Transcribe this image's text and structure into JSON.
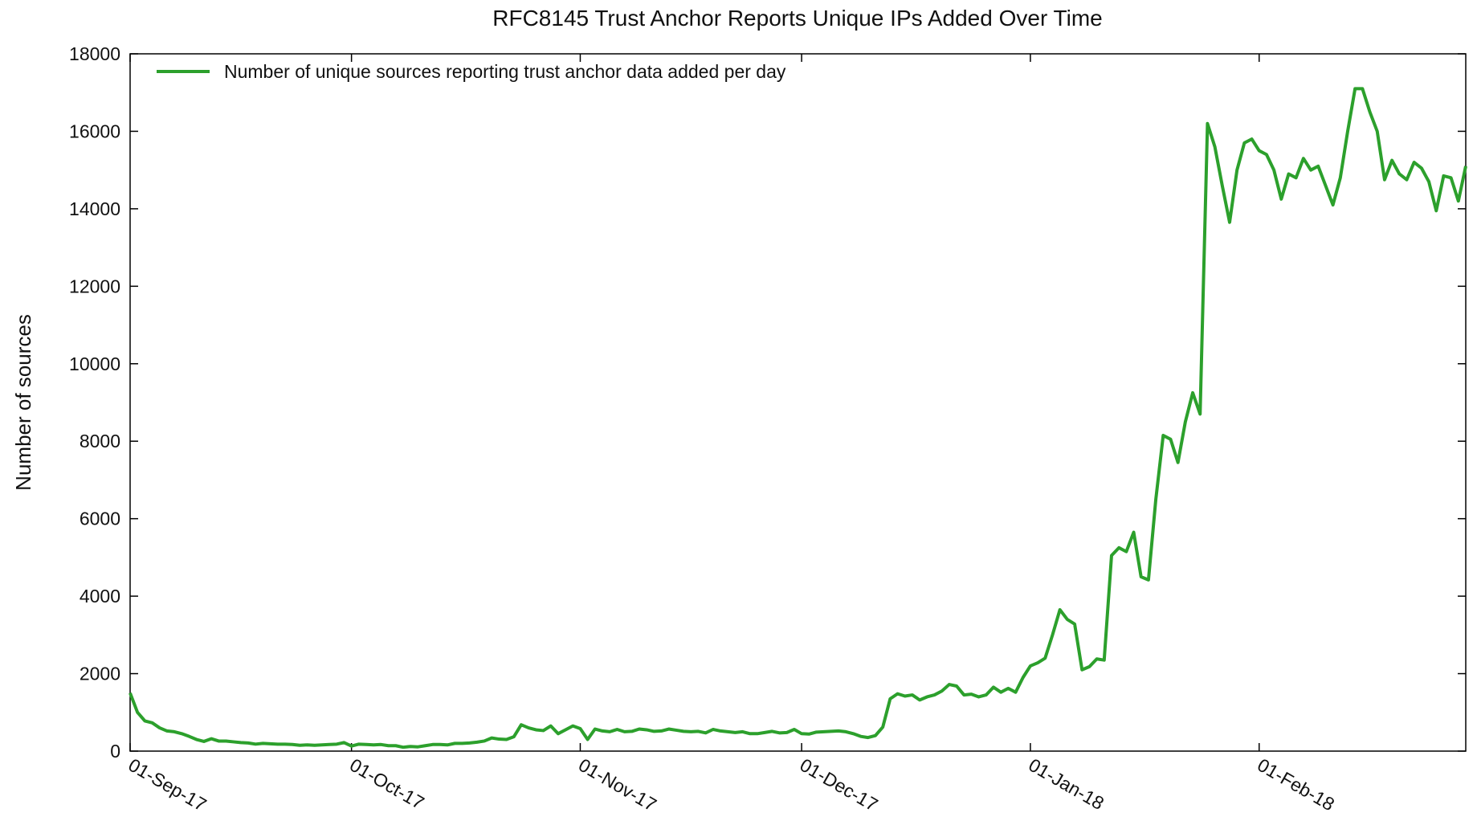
{
  "chart_data": {
    "type": "line",
    "title": "RFC8145 Trust Anchor Reports Unique IPs Added Over Time",
    "y_label": "Number of sources",
    "legend": "top-left",
    "xlim": [
      "2017-09-01",
      "2018-03-01"
    ],
    "xticks": [
      {
        "value": "2017-09-01",
        "label": "01-Sep-17"
      },
      {
        "value": "2017-10-01",
        "label": "01-Oct-17"
      },
      {
        "value": "2017-11-01",
        "label": "01-Nov-17"
      },
      {
        "value": "2017-12-01",
        "label": "01-Dec-17"
      },
      {
        "value": "2018-01-01",
        "label": "01-Jan-18"
      },
      {
        "value": "2018-02-01",
        "label": "01-Feb-18"
      }
    ],
    "ylim": [
      0,
      18000
    ],
    "yticks": [
      0,
      2000,
      4000,
      6000,
      8000,
      10000,
      12000,
      14000,
      16000,
      18000
    ],
    "x": [
      "2017-09-01",
      "2017-09-02",
      "2017-09-03",
      "2017-09-04",
      "2017-09-05",
      "2017-09-06",
      "2017-09-07",
      "2017-09-08",
      "2017-09-09",
      "2017-09-10",
      "2017-09-11",
      "2017-09-12",
      "2017-09-13",
      "2017-09-14",
      "2017-09-15",
      "2017-09-16",
      "2017-09-17",
      "2017-09-18",
      "2017-09-19",
      "2017-09-20",
      "2017-09-21",
      "2017-09-22",
      "2017-09-23",
      "2017-09-24",
      "2017-09-25",
      "2017-09-26",
      "2017-09-27",
      "2017-09-28",
      "2017-09-29",
      "2017-09-30",
      "2017-10-01",
      "2017-10-02",
      "2017-10-03",
      "2017-10-04",
      "2017-10-05",
      "2017-10-06",
      "2017-10-07",
      "2017-10-08",
      "2017-10-09",
      "2017-10-10",
      "2017-10-11",
      "2017-10-12",
      "2017-10-13",
      "2017-10-14",
      "2017-10-15",
      "2017-10-16",
      "2017-10-17",
      "2017-10-18",
      "2017-10-19",
      "2017-10-20",
      "2017-10-21",
      "2017-10-22",
      "2017-10-23",
      "2017-10-24",
      "2017-10-25",
      "2017-10-26",
      "2017-10-27",
      "2017-10-28",
      "2017-10-29",
      "2017-10-30",
      "2017-10-31",
      "2017-11-01",
      "2017-11-02",
      "2017-11-03",
      "2017-11-04",
      "2017-11-05",
      "2017-11-06",
      "2017-11-07",
      "2017-11-08",
      "2017-11-09",
      "2017-11-10",
      "2017-11-11",
      "2017-11-12",
      "2017-11-13",
      "2017-11-14",
      "2017-11-15",
      "2017-11-16",
      "2017-11-17",
      "2017-11-18",
      "2017-11-19",
      "2017-11-20",
      "2017-11-21",
      "2017-11-22",
      "2017-11-23",
      "2017-11-24",
      "2017-11-25",
      "2017-11-26",
      "2017-11-27",
      "2017-11-28",
      "2017-11-29",
      "2017-11-30",
      "2017-12-01",
      "2017-12-02",
      "2017-12-03",
      "2017-12-04",
      "2017-12-05",
      "2017-12-06",
      "2017-12-07",
      "2017-12-08",
      "2017-12-09",
      "2017-12-10",
      "2017-12-11",
      "2017-12-12",
      "2017-12-13",
      "2017-12-14",
      "2017-12-15",
      "2017-12-16",
      "2017-12-17",
      "2017-12-18",
      "2017-12-19",
      "2017-12-20",
      "2017-12-21",
      "2017-12-22",
      "2017-12-23",
      "2017-12-24",
      "2017-12-25",
      "2017-12-26",
      "2017-12-27",
      "2017-12-28",
      "2017-12-29",
      "2017-12-30",
      "2017-12-31",
      "2018-01-01",
      "2018-01-02",
      "2018-01-03",
      "2018-01-04",
      "2018-01-05",
      "2018-01-06",
      "2018-01-07",
      "2018-01-08",
      "2018-01-09",
      "2018-01-10",
      "2018-01-11",
      "2018-01-12",
      "2018-01-13",
      "2018-01-14",
      "2018-01-15",
      "2018-01-16",
      "2018-01-17",
      "2018-01-18",
      "2018-01-19",
      "2018-01-20",
      "2018-01-21",
      "2018-01-22",
      "2018-01-23",
      "2018-01-24",
      "2018-01-25",
      "2018-01-26",
      "2018-01-27",
      "2018-01-28",
      "2018-01-29",
      "2018-01-30",
      "2018-01-31",
      "2018-02-01",
      "2018-02-02",
      "2018-02-03",
      "2018-02-04",
      "2018-02-05",
      "2018-02-06",
      "2018-02-07",
      "2018-02-08",
      "2018-02-09",
      "2018-02-10",
      "2018-02-11",
      "2018-02-12",
      "2018-02-13",
      "2018-02-14",
      "2018-02-15",
      "2018-02-16",
      "2018-02-17",
      "2018-02-18",
      "2018-02-19",
      "2018-02-20",
      "2018-02-21",
      "2018-02-22",
      "2018-02-23",
      "2018-02-24",
      "2018-02-25",
      "2018-02-26",
      "2018-02-27",
      "2018-02-28",
      "2018-03-01"
    ],
    "series": [
      {
        "name": "Number of unique sources reporting trust anchor data added per day",
        "color": "#2ca02c",
        "values": [
          1500,
          1000,
          780,
          730,
          600,
          520,
          500,
          450,
          380,
          300,
          250,
          320,
          260,
          260,
          240,
          220,
          210,
          180,
          200,
          190,
          180,
          180,
          170,
          150,
          160,
          150,
          160,
          170,
          180,
          220,
          130,
          180,
          170,
          160,
          170,
          140,
          140,
          100,
          120,
          110,
          140,
          170,
          170,
          160,
          200,
          200,
          210,
          230,
          260,
          340,
          310,
          300,
          370,
          680,
          600,
          550,
          530,
          650,
          450,
          550,
          650,
          580,
          300,
          570,
          520,
          500,
          560,
          500,
          510,
          570,
          550,
          510,
          520,
          570,
          540,
          510,
          500,
          510,
          470,
          560,
          520,
          500,
          480,
          500,
          450,
          450,
          480,
          510,
          470,
          480,
          560,
          450,
          440,
          490,
          500,
          510,
          520,
          500,
          450,
          380,
          350,
          400,
          620,
          1350,
          1480,
          1420,
          1450,
          1320,
          1400,
          1450,
          1550,
          1720,
          1680,
          1450,
          1470,
          1400,
          1450,
          1650,
          1520,
          1620,
          1520,
          1900,
          2200,
          2280,
          2400,
          3000,
          3650,
          3400,
          3280,
          2100,
          2180,
          2380,
          2350,
          5050,
          5250,
          5150,
          5650,
          4500,
          4420,
          6500,
          8150,
          8050,
          7450,
          8500,
          9250,
          8700,
          16200,
          15600,
          14600,
          13650,
          15000,
          15700,
          15800,
          15500,
          15400,
          15000,
          14250,
          14900,
          14800,
          15300,
          15000,
          15100,
          14600,
          14100,
          14800,
          16000,
          17100,
          17100,
          16500,
          16000,
          14750,
          15250,
          14900,
          14750,
          15200,
          15050,
          14700,
          13950,
          14850,
          14800,
          14200,
          15100
        ]
      }
    ]
  }
}
